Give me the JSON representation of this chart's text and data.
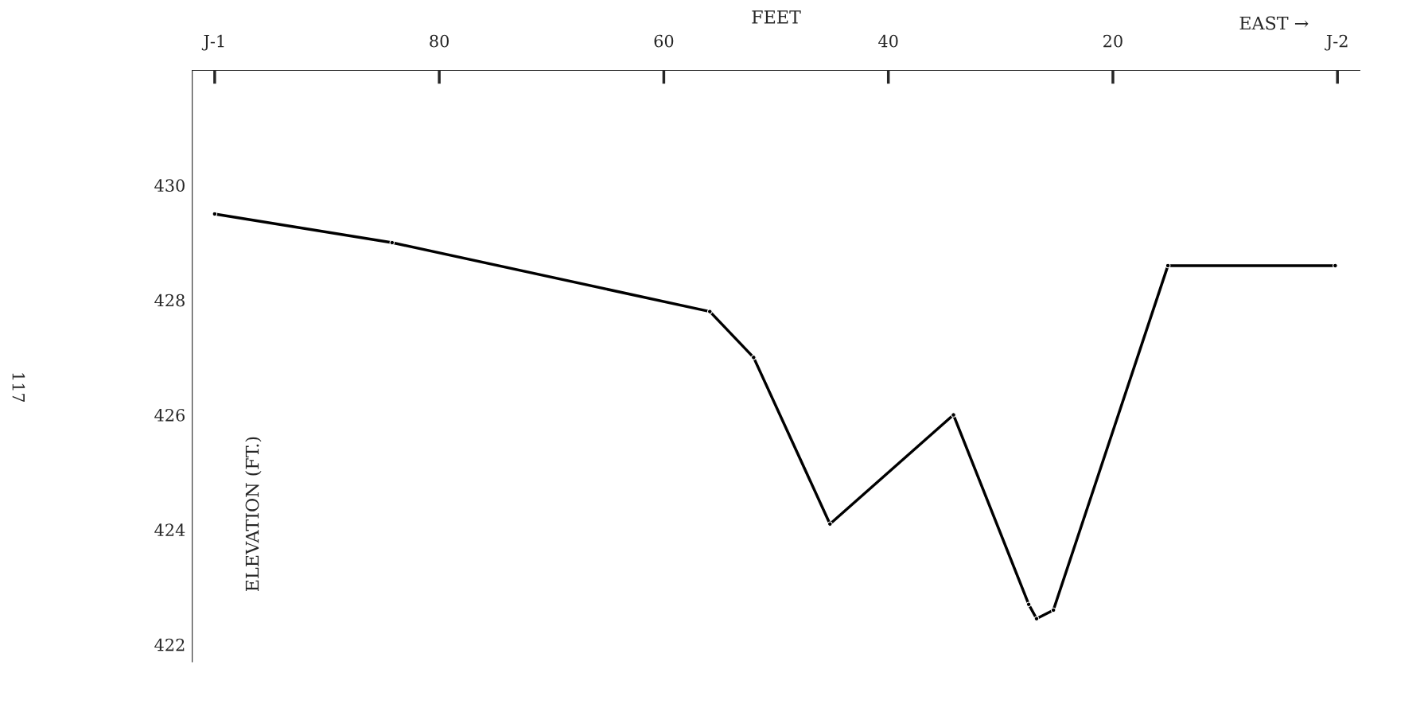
{
  "chart_data": {
    "type": "line",
    "xlabel": "FEET",
    "ylabel": "ELEVATION (FT.)",
    "x": [
      100,
      84.2,
      55.9,
      52.0,
      45.2,
      34.2,
      27.5,
      26.8,
      25.3,
      15.1,
      0.2
    ],
    "series": [
      {
        "color": "#000000",
        "values": [
          429.5,
          429.0,
          427.8,
          427.0,
          424.1,
          426.0,
          422.7,
          422.45,
          422.6,
          428.6,
          428.6
        ]
      }
    ],
    "xlim": [
      102,
      -2
    ],
    "xticks": [
      {
        "value": 100,
        "label": "J-1"
      },
      80,
      60,
      40,
      20,
      {
        "value": 0,
        "label": "J-2"
      }
    ],
    "ylim": [
      421.7,
      432
    ],
    "yticks": [
      422,
      424,
      426,
      428,
      430
    ],
    "marker": "circle",
    "line_style": "solid",
    "grid": false,
    "legend": false,
    "annotations": [
      "EAST →",
      "117"
    ]
  }
}
